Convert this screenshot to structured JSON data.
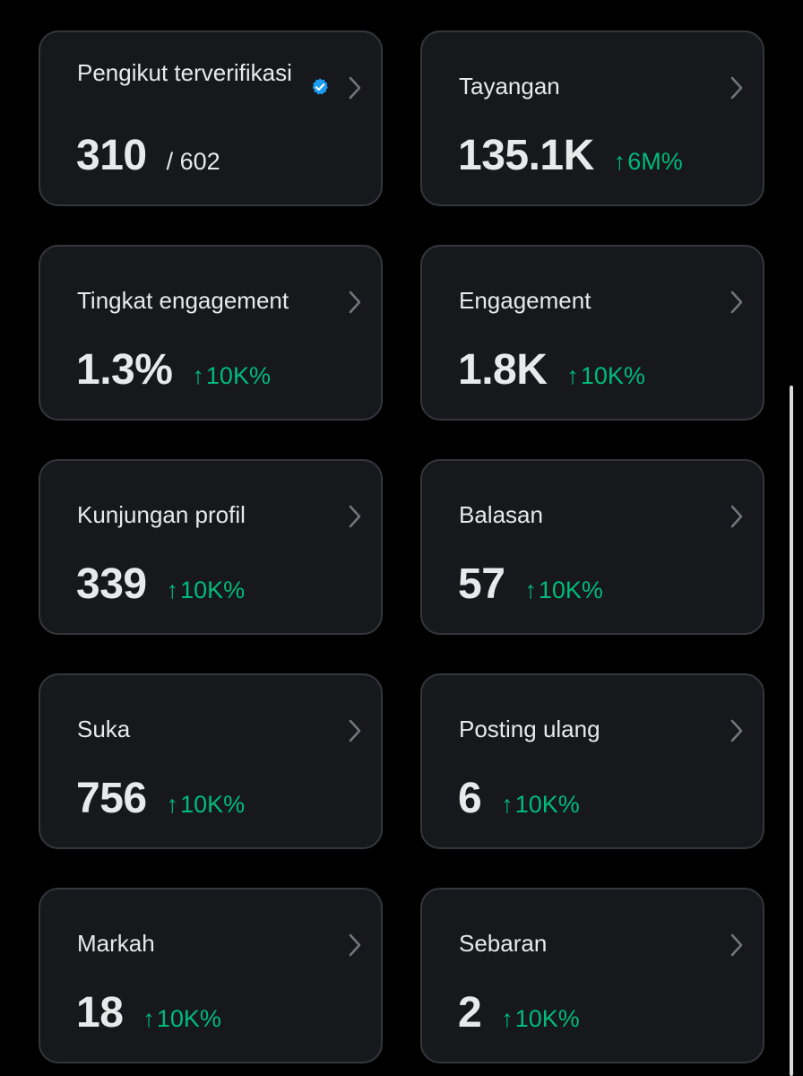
{
  "cards": [
    {
      "title": "Pengikut terverifikasi",
      "value": "310",
      "total": "/ 602",
      "verified_icon": "verified-badge-icon",
      "accent": "#1d9bf0"
    },
    {
      "title": "Tayangan",
      "value": "135.1K",
      "arrow": "↑",
      "change": "6M%"
    },
    {
      "title": "Tingkat engagement",
      "value": "1.3%",
      "arrow": "↑",
      "change": "10K%"
    },
    {
      "title": "Engagement",
      "value": "1.8K",
      "arrow": "↑",
      "change": "10K%"
    },
    {
      "title": "Kunjungan profil",
      "value": "339",
      "arrow": "↑",
      "change": "10K%"
    },
    {
      "title": "Balasan",
      "value": "57",
      "arrow": "↑",
      "change": "10K%"
    },
    {
      "title": "Suka",
      "value": "756",
      "arrow": "↑",
      "change": "10K%"
    },
    {
      "title": "Posting ulang",
      "value": "6",
      "arrow": "↑",
      "change": "10K%"
    },
    {
      "title": "Markah",
      "value": "18",
      "arrow": "↑",
      "change": "10K%"
    },
    {
      "title": "Sebaran",
      "value": "2",
      "arrow": "↑",
      "change": "10K%"
    }
  ],
  "colors": {
    "background": "#000000",
    "card": "#16181c",
    "card_border": "#33363b",
    "text": "#e7e9ea",
    "positive": "#00ba7c",
    "chevron": "#71767b"
  }
}
